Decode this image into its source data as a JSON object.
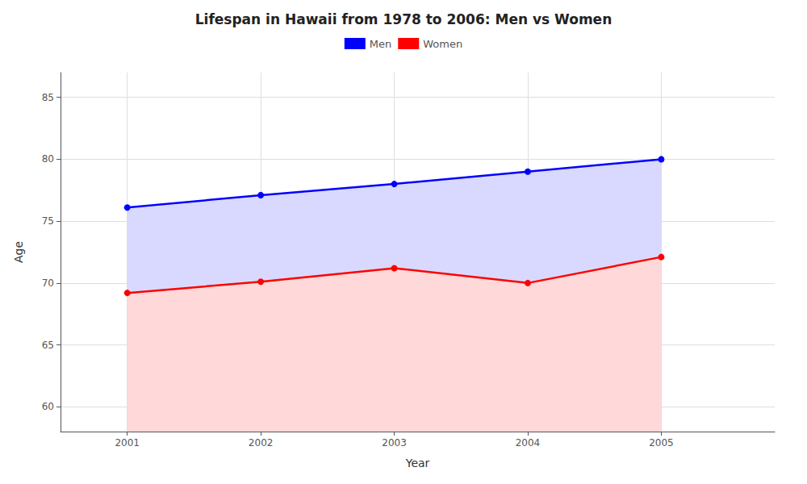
{
  "chart_data": {
    "type": "area",
    "title": "Lifespan in Hawaii from 1978 to 2006: Men vs Women",
    "xlabel": "Year",
    "ylabel": "Age",
    "x": [
      2001,
      2002,
      2003,
      2004,
      2005
    ],
    "series": [
      {
        "name": "Men",
        "color": "#0000ff",
        "values": [
          76.1,
          77.1,
          78.0,
          79.0,
          80.0
        ],
        "marker": "circle"
      },
      {
        "name": "Women",
        "color": "#ff0000",
        "values": [
          69.2,
          70.1,
          71.2,
          70.0,
          72.1
        ],
        "marker": "circle"
      }
    ],
    "xlim": [
      2000.5,
      2005.85
    ],
    "xticks": [
      2001,
      2002,
      2003,
      2004,
      2005
    ],
    "ylim": [
      58,
      87
    ],
    "yticks": [
      60,
      65,
      70,
      75,
      80,
      85
    ],
    "grid": true,
    "legend": "top"
  }
}
